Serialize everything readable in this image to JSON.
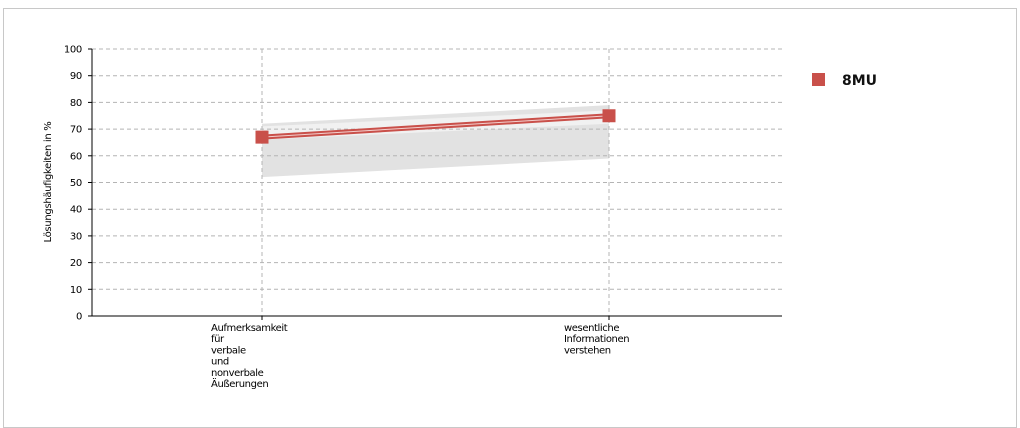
{
  "chart_data": {
    "type": "line",
    "categories": [
      [
        "Aufmerksamkeit",
        "für",
        "verbale",
        "und",
        "nonverbale",
        "Äußerungen"
      ],
      [
        "wesentliche",
        "Informationen",
        "verstehen"
      ]
    ],
    "ylabel": "Lösungshäufigkeiten in %",
    "xlabel": "",
    "ylim": [
      0,
      100
    ],
    "yticks": [
      0,
      10,
      20,
      30,
      40,
      50,
      60,
      70,
      80,
      90,
      100
    ],
    "grid": true,
    "legend_position": "right",
    "series": [
      {
        "name": "8MU",
        "values": [
          67,
          75
        ],
        "color": "#c9504a"
      }
    ],
    "bands": {
      "outer": {
        "upper": [
          72,
          79
        ],
        "lower": [
          52,
          59
        ],
        "color": "#e2e2e2"
      },
      "inner": {
        "upper": [
          71,
          77
        ],
        "lower": [
          66,
          72
        ],
        "color": "#f1f1f1"
      }
    }
  }
}
